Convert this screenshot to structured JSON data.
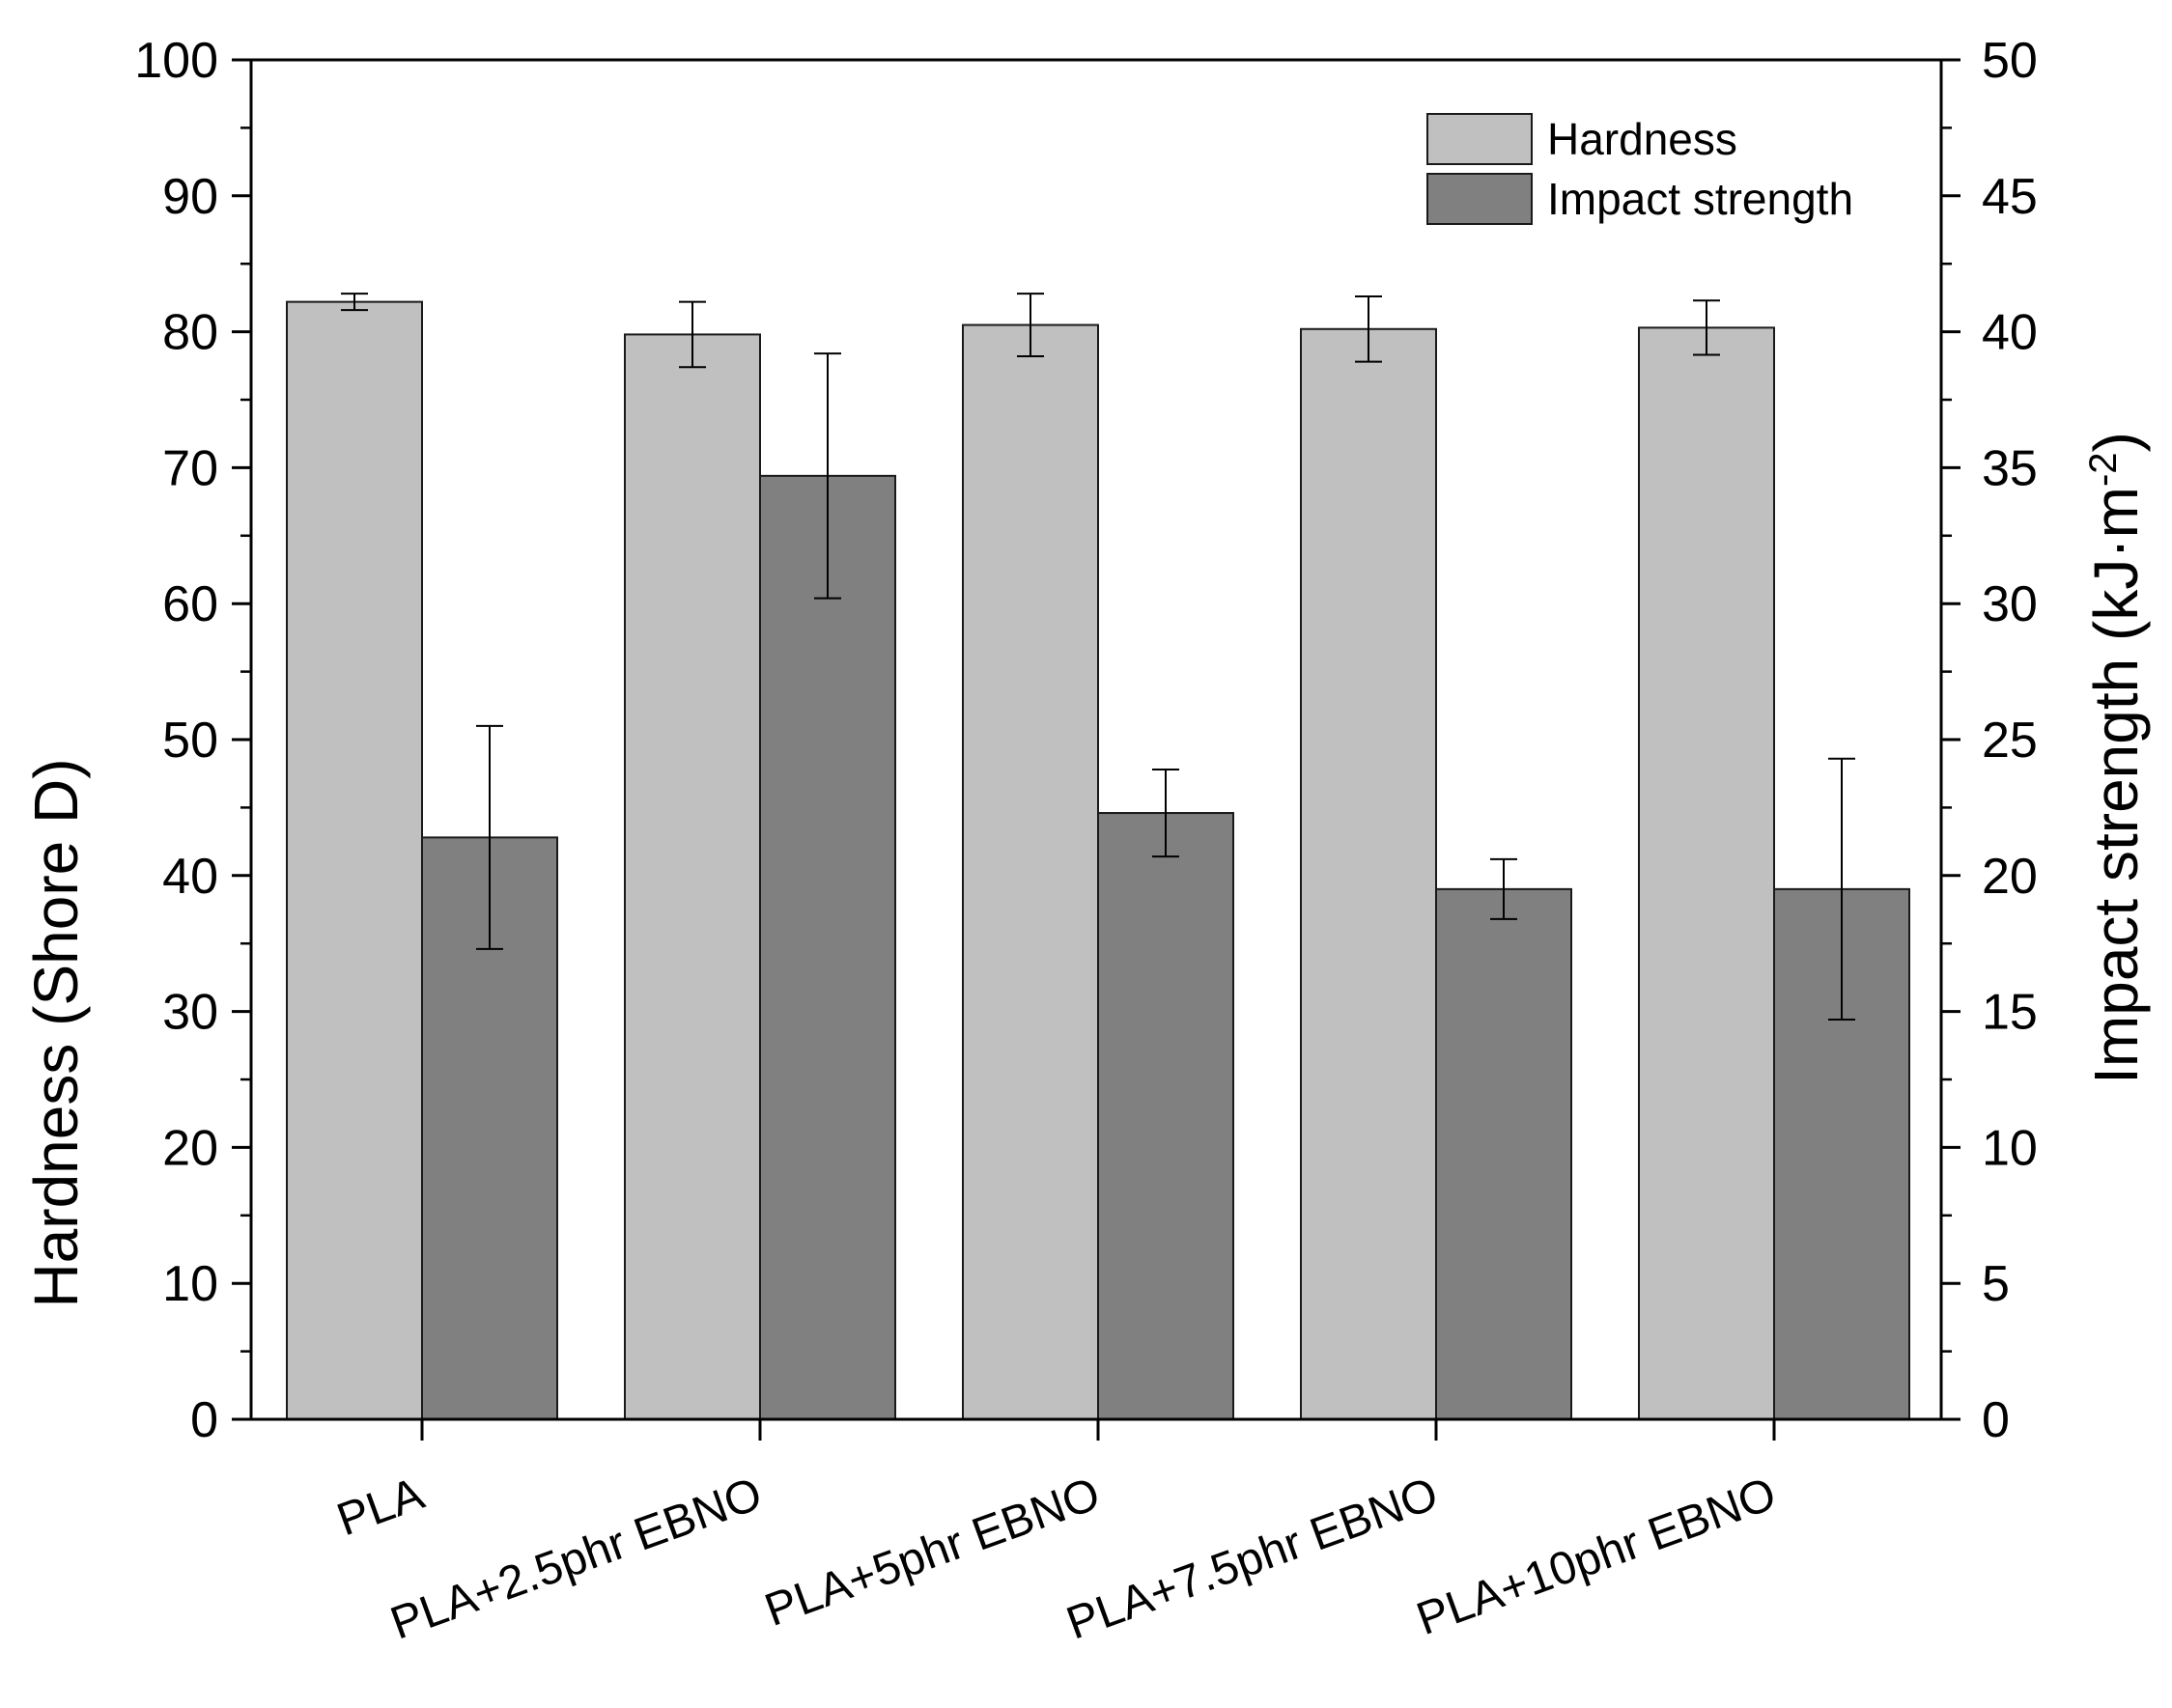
{
  "chart_data": {
    "type": "bar",
    "categories": [
      "PLA",
      "PLA+2.5phr EBNO",
      "PLA+5phr EBNO",
      "PLA+7.5phr EBNO",
      "PLA+10phr EBNO"
    ],
    "series": [
      {
        "name": "Hardness",
        "axis": "left",
        "color": "#c0c0c0",
        "values": [
          82.2,
          79.8,
          80.5,
          80.2,
          80.3
        ],
        "errors": [
          0.6,
          2.4,
          2.3,
          2.4,
          2.0
        ]
      },
      {
        "name": "Impact strength",
        "axis": "right",
        "color": "#808080",
        "values": [
          21.4,
          34.7,
          22.3,
          19.5,
          19.5
        ],
        "errors": [
          4.1,
          4.5,
          1.6,
          1.1,
          4.8
        ]
      }
    ],
    "ylabel": "Hardness (Shore D)",
    "y2label_main": "Impact strength (kJ·m",
    "y2label_sup": "-2",
    "y2label_end": ")",
    "ylim": [
      0,
      100
    ],
    "y2lim": [
      0,
      50
    ],
    "yticks": [
      "0",
      "10",
      "20",
      "30",
      "40",
      "50",
      "60",
      "70",
      "80",
      "90",
      "100"
    ],
    "y2ticks": [
      "0",
      "5",
      "10",
      "15",
      "20",
      "25",
      "30",
      "35",
      "40",
      "45",
      "50"
    ],
    "legend_position": "top-right",
    "xlabel": "",
    "title": ""
  }
}
